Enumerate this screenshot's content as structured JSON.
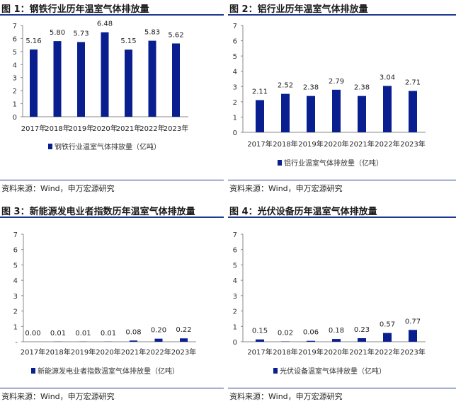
{
  "chart_data": [
    {
      "type": "bar",
      "title": "图 1：钢铁行业历年温室气体排放量",
      "categories": [
        "2017年",
        "2018年",
        "2019年",
        "2020年",
        "2021年",
        "2022年",
        "2023年"
      ],
      "series": [
        {
          "name": "钢铁行业温室气体排放量（亿吨）",
          "values": [
            5.16,
            5.8,
            5.73,
            6.48,
            5.15,
            5.83,
            5.62
          ]
        }
      ],
      "value_labels": [
        "5.16",
        "5.80",
        "5.73",
        "6.48",
        "5.15",
        "5.83",
        "5.62"
      ],
      "yticks": [
        "0",
        "1",
        "2",
        "3",
        "4",
        "5",
        "6",
        "7"
      ],
      "ylim": [
        0,
        7
      ],
      "legend": "bottom",
      "color": "#0a1f8f",
      "source": "资料来源：Wind，申万宏源研究"
    },
    {
      "type": "bar",
      "title": "图 2：铝行业历年温室气体排放量",
      "categories": [
        "2017年",
        "2018年",
        "2019年",
        "2020年",
        "2021年",
        "2022年",
        "2023年"
      ],
      "series": [
        {
          "name": "铝行业温室气体排放量（亿吨）",
          "values": [
            2.11,
            2.52,
            2.38,
            2.79,
            2.38,
            3.04,
            2.71
          ]
        }
      ],
      "value_labels": [
        "2.11",
        "2.52",
        "2.38",
        "2.79",
        "2.38",
        "3.04",
        "2.71"
      ],
      "yticks": [
        "0",
        "1",
        "2",
        "3",
        "4",
        "5",
        "6",
        "7"
      ],
      "ylim": [
        0,
        7
      ],
      "legend": "bottom",
      "color": "#0a1f8f",
      "source": "资料来源：Wind，申万宏源研究"
    },
    {
      "type": "bar",
      "title": "图 3：新能源发电业者指数历年温室气体排放量",
      "categories": [
        "2017年",
        "2018年",
        "2019年",
        "2020年",
        "2021年",
        "2022年",
        "2023年"
      ],
      "series": [
        {
          "name": "新能源发电业者指数温室气体排放量（亿吨）",
          "values": [
            0.0,
            0.01,
            0.01,
            0.01,
            0.08,
            0.2,
            0.22
          ]
        }
      ],
      "value_labels": [
        "0.00",
        "0.01",
        "0.01",
        "0.01",
        "0.08",
        "0.20",
        "0.22"
      ],
      "yticks": [
        "-",
        "1",
        "2",
        "3",
        "4",
        "5",
        "6",
        "7"
      ],
      "ylim": [
        0,
        7
      ],
      "legend": "bottom",
      "color": "#0a1f8f",
      "source": "资料来源：Wind，申万宏源研究"
    },
    {
      "type": "bar",
      "title": "图 4：光伏设备历年温室气体排放量",
      "categories": [
        "2017年",
        "2018年",
        "2019年",
        "2020年",
        "2021年",
        "2022年",
        "2023年"
      ],
      "series": [
        {
          "name": "光伏设备温室气体排放量（亿吨）",
          "values": [
            0.15,
            0.02,
            0.06,
            0.18,
            0.23,
            0.57,
            0.77
          ]
        }
      ],
      "value_labels": [
        "0.15",
        "0.02",
        "0.06",
        "0.18",
        "0.23",
        "0.57",
        "0.77"
      ],
      "yticks": [
        "0",
        "1",
        "2",
        "3",
        "4",
        "5",
        "6",
        "7"
      ],
      "ylim": [
        0,
        7
      ],
      "legend": "bottom",
      "color": "#0a1f8f",
      "source": "资料来源：Wind，申万宏源研究"
    }
  ]
}
